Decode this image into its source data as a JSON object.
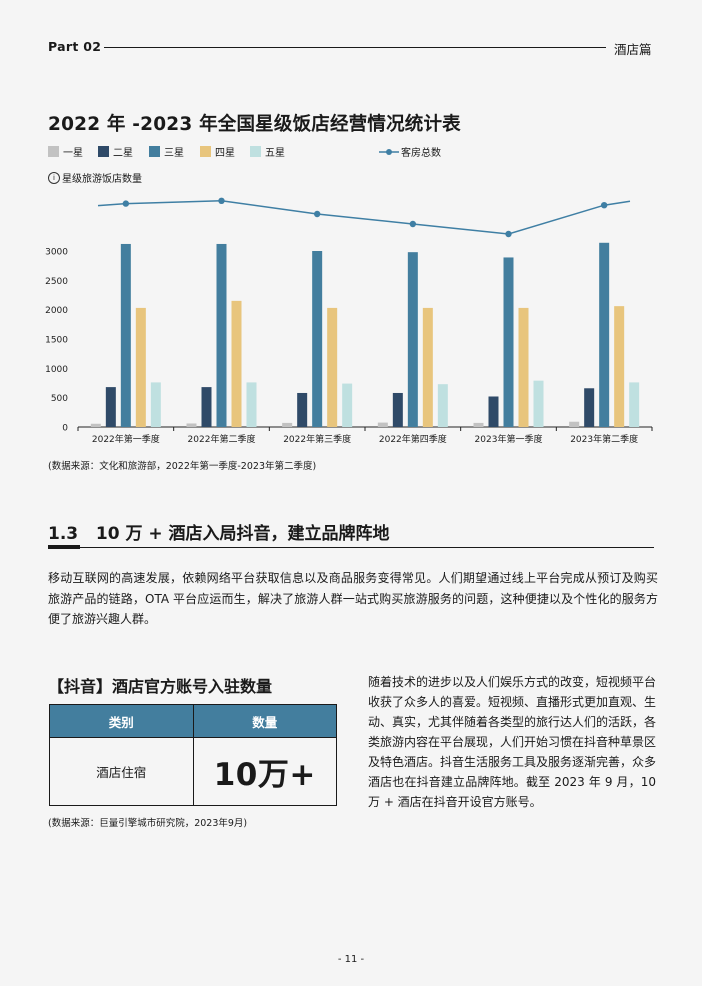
{
  "header": {
    "part": "Part 02",
    "section": "酒店篇"
  },
  "chart_title": "2022 年 -2023 年全国星级饭店经营情况统计表",
  "legend": {
    "items": [
      {
        "label": "一星",
        "color": "#c2c2c2"
      },
      {
        "label": "二星",
        "color": "#2f4a68"
      },
      {
        "label": "三星",
        "color": "#437e9e"
      },
      {
        "label": "四星",
        "color": "#e8c57d"
      },
      {
        "label": "五星",
        "color": "#bfe0e0"
      }
    ],
    "line_label": "客房总数",
    "line_color": "#3f7fa4"
  },
  "y_axis_title": "星级旅游饭店数量",
  "chart_data": {
    "type": "bar",
    "categories": [
      "2022年第一季度",
      "2022年第二季度",
      "2022年第三季度",
      "2022年第四季度",
      "2023年第一季度",
      "2023年第二季度"
    ],
    "yticks": [
      "0",
      "500",
      "1000",
      "1500",
      "2000",
      "2500",
      "3000"
    ],
    "ylim": [
      0,
      3100
    ],
    "series": [
      {
        "name": "一星",
        "values": [
          55,
          60,
          70,
          75,
          70,
          90
        ]
      },
      {
        "name": "二星",
        "values": [
          680,
          680,
          580,
          580,
          520,
          660
        ]
      },
      {
        "name": "三星",
        "values": [
          3120,
          3120,
          3000,
          2980,
          2890,
          3140
        ]
      },
      {
        "name": "四星",
        "values": [
          2030,
          2150,
          2030,
          2030,
          2030,
          2060
        ]
      },
      {
        "name": "五星",
        "values": [
          760,
          760,
          740,
          730,
          790,
          760
        ]
      }
    ],
    "line_series": {
      "name": "客房总数",
      "relative_values": [
        0.86,
        0.93,
        0.6,
        0.35,
        0.1,
        0.82
      ]
    }
  },
  "source1": "(数据来源：文化和旅游部，2022年第一季度-2023年第二季度)",
  "section_title": "1.3   10 万 + 酒店入局抖音，建立品牌阵地",
  "paragraph": "移动互联网的高速发展，依赖网络平台获取信息以及商品服务变得常见。人们期望通过线上平台完成从预订及购买旅游产品的链路，OTA 平台应运而生，解决了旅游人群一站式购买旅游服务的问题，这种便捷以及个性化的服务方便了旅游兴趣人群。",
  "table": {
    "title": "【抖音】酒店官方账号入驻数量",
    "col1_header": "类别",
    "col2_header": "数量",
    "row_label": "酒店住宿",
    "row_value": "10万+",
    "header_color": "#437e9e"
  },
  "source2": "(数据来源：巨量引擎城市研究院，2023年9月)",
  "side_text": "随着技术的进步以及人们娱乐方式的改变，短视频平台收获了众多人的喜爱。短视频、直播形式更加直观、生动、真实，尤其伴随着各类型的旅行达人们的活跃，各类旅游内容在平台展现，人们开始习惯在抖音种草景区及特色酒店。抖音生活服务工具及服务逐渐完善，众多酒店也在抖音建立品牌阵地。截至 2023 年 9 月，10 万 + 酒店在抖音开设官方账号。",
  "page_number": "- 11 -"
}
